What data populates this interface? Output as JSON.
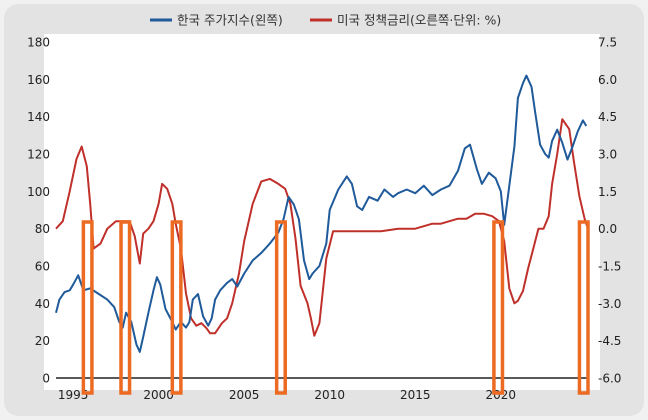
{
  "chart_data": {
    "type": "line",
    "legend": [
      {
        "label": "한국 주가지수(왼쪽)",
        "color": "#1f5a9a"
      },
      {
        "label": "미국 정책금리(오른쪽·단위: %)",
        "color": "#c0302b"
      }
    ],
    "legend_placement": "top",
    "grid": false,
    "x_range": [
      1994.0,
      2025.1
    ],
    "x_ticks": [
      "1995",
      "2000",
      "2005",
      "2010",
      "2015",
      "2020"
    ],
    "y_left": {
      "range": [
        0,
        180
      ],
      "ticks": [
        "0",
        "20",
        "40",
        "60",
        "80",
        "100",
        "120",
        "140",
        "160",
        "180"
      ]
    },
    "y_right": {
      "range": [
        -6.0,
        7.5
      ],
      "ticks": [
        "-6.0",
        "-4.5",
        "-3.0",
        "-1.5",
        "0.0",
        "1.5",
        "3.0",
        "4.5",
        "6.0",
        "7.5"
      ]
    },
    "series": [
      {
        "name": "한국 주가지수(왼쪽)",
        "axis": "left",
        "color": "#1f5a9a",
        "x": [
          1994.0,
          1994.2,
          1994.5,
          1994.8,
          1995.0,
          1995.3,
          1995.6,
          1996.0,
          1996.5,
          1997.0,
          1997.4,
          1997.7,
          1997.9,
          1998.1,
          1998.4,
          1998.7,
          1998.9,
          1999.1,
          1999.4,
          1999.7,
          1999.9,
          2000.1,
          2000.4,
          2000.8,
          2001.0,
          2001.3,
          2001.6,
          2001.8,
          2002.0,
          2002.3,
          2002.6,
          2002.9,
          2003.1,
          2003.3,
          2003.6,
          2004.0,
          2004.3,
          2004.6,
          2005.0,
          2005.5,
          2006.0,
          2006.5,
          2007.0,
          2007.3,
          2007.6,
          2007.9,
          2008.2,
          2008.5,
          2008.8,
          2009.0,
          2009.4,
          2009.8,
          2010.0,
          2010.5,
          2011.0,
          2011.3,
          2011.6,
          2011.9,
          2012.3,
          2012.8,
          2013.2,
          2013.7,
          2014.0,
          2014.5,
          2015.0,
          2015.5,
          2016.0,
          2016.5,
          2017.0,
          2017.5,
          2017.9,
          2018.2,
          2018.6,
          2018.9,
          2019.3,
          2019.7,
          2020.0,
          2020.2,
          2020.5,
          2020.8,
          2021.0,
          2021.3,
          2021.5,
          2021.8,
          2022.0,
          2022.3,
          2022.6,
          2022.8,
          2023.0,
          2023.3,
          2023.6,
          2023.9,
          2024.2,
          2024.5,
          2024.8,
          2025.0
        ],
        "values": [
          35,
          42,
          46,
          47,
          50,
          55,
          47,
          48,
          45,
          42,
          38,
          30,
          27,
          35,
          30,
          18,
          14,
          22,
          35,
          47,
          54,
          50,
          37,
          30,
          26,
          30,
          27,
          30,
          42,
          45,
          33,
          28,
          32,
          42,
          47,
          51,
          53,
          49,
          56,
          63,
          67,
          72,
          78,
          85,
          97,
          93,
          85,
          63,
          53,
          56,
          60,
          72,
          90,
          101,
          108,
          104,
          92,
          90,
          97,
          95,
          101,
          97,
          99,
          101,
          99,
          103,
          98,
          101,
          103,
          111,
          123,
          125,
          112,
          104,
          110,
          107,
          100,
          82,
          103,
          124,
          150,
          158,
          162,
          156,
          143,
          125,
          120,
          118,
          127,
          133,
          126,
          117,
          124,
          132,
          138,
          135
        ]
      },
      {
        "name": "미국 정책금리(오른쪽·단위: %)",
        "axis": "right",
        "color": "#c0302b",
        "x": [
          1994.0,
          1994.4,
          1994.8,
          1995.2,
          1995.5,
          1995.8,
          1996.0,
          1996.2,
          1996.6,
          1997.0,
          1997.5,
          1998.0,
          1998.3,
          1998.6,
          1998.9,
          1999.1,
          1999.4,
          1999.7,
          2000.0,
          2000.2,
          2000.5,
          2000.8,
          2001.0,
          2001.3,
          2001.6,
          2001.9,
          2002.2,
          2002.5,
          2002.8,
          2003.0,
          2003.3,
          2003.7,
          2004.0,
          2004.3,
          2004.7,
          2005.0,
          2005.5,
          2006.0,
          2006.5,
          2007.0,
          2007.4,
          2007.7,
          2008.0,
          2008.3,
          2008.7,
          2008.9,
          2009.1,
          2009.4,
          2009.8,
          2010.2,
          2011.0,
          2012.0,
          2013.0,
          2014.0,
          2015.0,
          2015.5,
          2016.0,
          2016.5,
          2017.0,
          2017.5,
          2018.0,
          2018.5,
          2019.0,
          2019.5,
          2019.9,
          2020.2,
          2020.5,
          2020.8,
          2021.0,
          2021.3,
          2021.6,
          2021.9,
          2022.2,
          2022.5,
          2022.8,
          2023.0,
          2023.3,
          2023.6,
          2024.0,
          2024.3,
          2024.6,
          2024.9,
          2025.1
        ],
        "values": [
          0.0,
          0.3,
          1.5,
          2.8,
          3.3,
          2.5,
          1.0,
          -0.8,
          -0.6,
          0.0,
          0.3,
          0.3,
          0.3,
          -0.3,
          -1.4,
          -0.2,
          0.0,
          0.3,
          1.0,
          1.8,
          1.6,
          1.0,
          0.2,
          -0.8,
          -2.6,
          -3.6,
          -3.9,
          -3.8,
          -4.0,
          -4.2,
          -4.2,
          -3.8,
          -3.6,
          -3.0,
          -1.8,
          -0.5,
          1.0,
          1.9,
          2.0,
          1.8,
          1.6,
          1.0,
          -0.4,
          -2.3,
          -3.0,
          -3.6,
          -4.3,
          -3.8,
          -1.2,
          -0.1,
          -0.1,
          -0.1,
          -0.1,
          0.0,
          0.0,
          0.1,
          0.2,
          0.2,
          0.3,
          0.4,
          0.4,
          0.6,
          0.6,
          0.5,
          0.3,
          -0.5,
          -2.4,
          -3.0,
          -2.9,
          -2.5,
          -1.6,
          -0.8,
          0.0,
          0.0,
          0.5,
          1.8,
          3.0,
          4.4,
          4.0,
          2.6,
          1.3,
          0.4,
          0.0
        ]
      }
    ],
    "highlight_periods": [
      {
        "start": 1995.6,
        "end": 1996.1
      },
      {
        "start": 1997.8,
        "end": 1998.3
      },
      {
        "start": 2000.8,
        "end": 2001.3
      },
      {
        "start": 2006.9,
        "end": 2007.4
      },
      {
        "start": 2019.6,
        "end": 2020.1
      },
      {
        "start": 2024.6,
        "end": 2025.1
      }
    ],
    "highlight_color": "#ec6a22"
  }
}
